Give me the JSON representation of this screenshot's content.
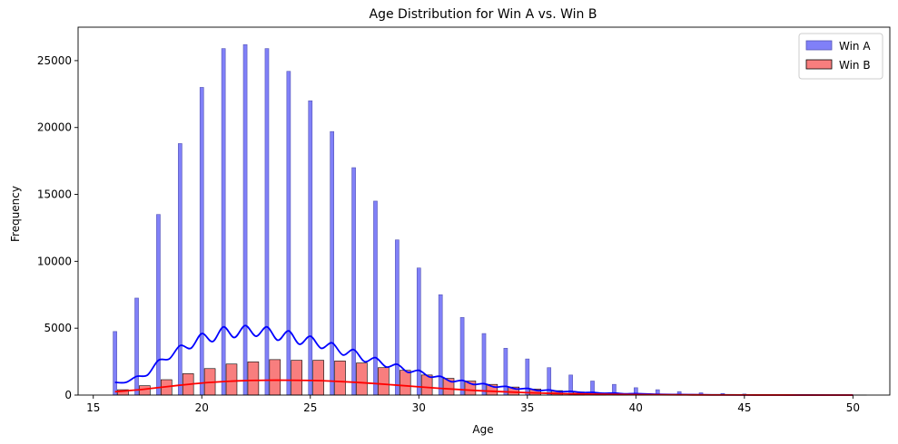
{
  "chart_data": {
    "type": "bar",
    "title": "Age Distribution for Win A vs. Win B",
    "xlabel": "Age",
    "ylabel": "Frequency",
    "xlim": [
      14.3,
      51.7
    ],
    "ylim": [
      0,
      27500
    ],
    "x_ticks": [
      15,
      20,
      25,
      30,
      35,
      40,
      45,
      50
    ],
    "y_ticks": [
      0,
      5000,
      10000,
      15000,
      20000,
      25000
    ],
    "legend_position": "top-right",
    "grid": false,
    "series": [
      {
        "name": "Win A",
        "color": "#0000ff",
        "fill": "#8080f8",
        "ages": [
          16,
          17,
          18,
          19,
          20,
          21,
          22,
          23,
          24,
          25,
          26,
          27,
          28,
          29,
          30,
          31,
          32,
          33,
          34,
          35,
          36,
          37,
          38,
          39,
          40,
          41,
          42,
          43,
          44,
          45,
          46,
          47,
          48,
          49,
          50
        ],
        "values": [
          4750,
          7250,
          13500,
          18800,
          23000,
          25900,
          26200,
          25900,
          24200,
          22000,
          19700,
          17000,
          14500,
          11600,
          9500,
          7500,
          5800,
          4600,
          3500,
          2700,
          2050,
          1500,
          1050,
          800,
          550,
          400,
          260,
          170,
          120,
          80,
          40,
          30,
          20,
          10,
          10
        ],
        "kde_x": [
          16,
          16.5,
          17,
          17.5,
          18,
          18.5,
          19,
          19.5,
          20,
          20.5,
          21,
          21.5,
          22,
          22.5,
          23,
          23.5,
          24,
          24.5,
          25,
          25.5,
          26,
          26.5,
          27,
          27.5,
          28,
          28.5,
          29,
          29.5,
          30,
          30.5,
          31,
          31.5,
          32,
          32.5,
          33,
          33.5,
          34,
          34.5,
          35,
          35.5,
          36,
          36.5,
          37,
          37.5,
          38,
          38.5,
          39,
          39.5,
          40,
          41,
          42,
          43,
          44,
          45,
          46,
          47,
          48,
          49,
          50
        ],
        "kde_y": [
          950,
          950,
          1400,
          1500,
          2600,
          2700,
          3700,
          3500,
          4600,
          4000,
          5100,
          4300,
          5200,
          4400,
          5100,
          4100,
          4800,
          3800,
          4400,
          3500,
          3900,
          3000,
          3400,
          2500,
          2800,
          2100,
          2300,
          1700,
          1850,
          1350,
          1400,
          1000,
          1100,
          800,
          850,
          600,
          650,
          450,
          500,
          330,
          380,
          250,
          280,
          190,
          200,
          130,
          150,
          90,
          110,
          55,
          40,
          25,
          15,
          10,
          8,
          5,
          3,
          2,
          1
        ]
      },
      {
        "name": "Win B",
        "color": "#ff0000",
        "fill": "#f87e7e",
        "ages": [
          16,
          17,
          18,
          19,
          20,
          21,
          22,
          23,
          24,
          25,
          26,
          27,
          28,
          29,
          30,
          31,
          32,
          33,
          34,
          35,
          36,
          37,
          38,
          39,
          40,
          41,
          42,
          43,
          44,
          45,
          46,
          47,
          48,
          49,
          50
        ],
        "values": [
          400,
          700,
          1150,
          1600,
          1980,
          2320,
          2480,
          2650,
          2600,
          2600,
          2550,
          2400,
          2050,
          1850,
          1500,
          1250,
          1050,
          800,
          600,
          450,
          330,
          230,
          160,
          100,
          60,
          40,
          25,
          15,
          10,
          8,
          5,
          4,
          3,
          2,
          1
        ],
        "kde_x": [
          16,
          17,
          18,
          19,
          20,
          21,
          22,
          23,
          24,
          25,
          26,
          27,
          28,
          29,
          30,
          31,
          32,
          33,
          34,
          35,
          36,
          37,
          38,
          39,
          40,
          41,
          42,
          43,
          44,
          45,
          46,
          47,
          48,
          49,
          50
        ],
        "kde_y": [
          250,
          380,
          560,
          740,
          900,
          1010,
          1080,
          1110,
          1110,
          1090,
          1040,
          960,
          860,
          740,
          620,
          500,
          400,
          310,
          240,
          180,
          130,
          95,
          70,
          50,
          35,
          25,
          17,
          12,
          8,
          6,
          4,
          3,
          2,
          1,
          1
        ]
      }
    ]
  }
}
